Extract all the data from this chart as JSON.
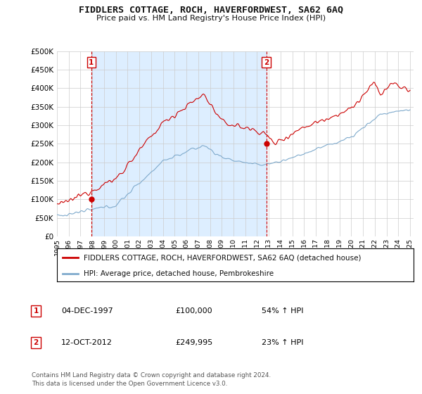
{
  "title": "FIDDLERS COTTAGE, ROCH, HAVERFORDWEST, SA62 6AQ",
  "subtitle": "Price paid vs. HM Land Registry's House Price Index (HPI)",
  "legend_line1": "FIDDLERS COTTAGE, ROCH, HAVERFORDWEST, SA62 6AQ (detached house)",
  "legend_line2": "HPI: Average price, detached house, Pembrokeshire",
  "annotation1_date": "04-DEC-1997",
  "annotation1_price": "£100,000",
  "annotation1_hpi": "54% ↑ HPI",
  "annotation2_date": "12-OCT-2012",
  "annotation2_price": "£249,995",
  "annotation2_hpi": "23% ↑ HPI",
  "footnote": "Contains HM Land Registry data © Crown copyright and database right 2024.\nThis data is licensed under the Open Government Licence v3.0.",
  "red_color": "#cc0000",
  "blue_color": "#7faacc",
  "shade_color": "#ddeeff",
  "dashed_color": "#cc0000",
  "grid_color": "#cccccc",
  "background_color": "#ffffff",
  "purchase1_year": 1997.92,
  "purchase1_price": 100000,
  "purchase2_year": 2012.79,
  "purchase2_price": 249995,
  "yticks": [
    0,
    50000,
    100000,
    150000,
    200000,
    250000,
    300000,
    350000,
    400000,
    450000,
    500000
  ],
  "xstart_year": 1995,
  "xend_year": 2025
}
